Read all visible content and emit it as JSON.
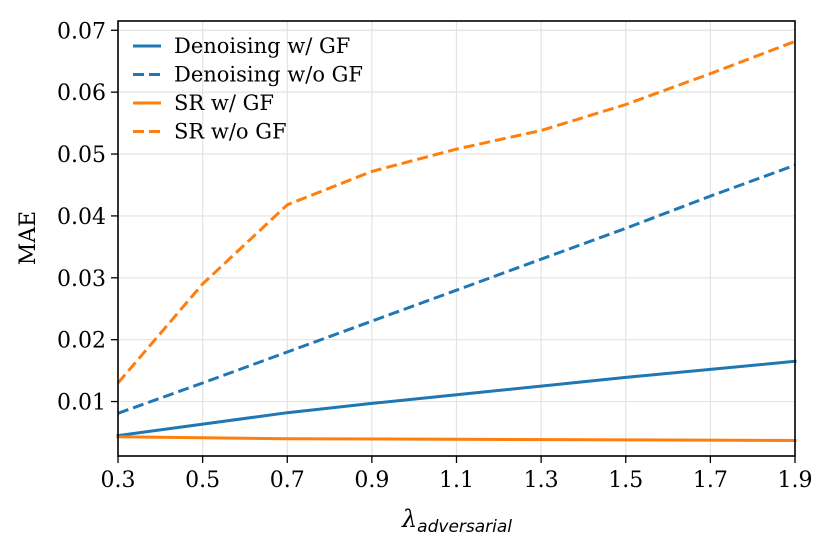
{
  "chart_data": {
    "type": "line",
    "title": "",
    "xlabel_symbol": "λ",
    "xlabel_subscript": "adversarial",
    "ylabel": "MAE",
    "xlim": [
      0.3,
      1.9
    ],
    "ylim": [
      0.0012,
      0.0715
    ],
    "xticks": [
      0.3,
      0.5,
      0.7,
      0.9,
      1.1,
      1.3,
      1.5,
      1.7,
      1.9
    ],
    "xtick_labels": [
      "0.3",
      "0.5",
      "0.7",
      "0.9",
      "1.1",
      "1.3",
      "1.5",
      "1.7",
      "1.9"
    ],
    "yticks": [
      0.01,
      0.02,
      0.03,
      0.04,
      0.05,
      0.06,
      0.07
    ],
    "ytick_labels": [
      "0.01",
      "0.02",
      "0.03",
      "0.04",
      "0.05",
      "0.06",
      "0.07"
    ],
    "grid": true,
    "legend_position": "top-left",
    "series": [
      {
        "name": "Denoising w/ GF",
        "color": "#1f77b4",
        "style": "solid",
        "x": [
          0.3,
          0.7,
          0.9,
          1.1,
          1.3,
          1.5,
          1.7,
          1.9
        ],
        "values": [
          0.0045,
          0.0082,
          0.0097,
          0.0111,
          0.0125,
          0.0139,
          0.0152,
          0.0165
        ]
      },
      {
        "name": "Denoising w/o GF",
        "color": "#1f77b4",
        "style": "dashed",
        "x": [
          0.3,
          0.5,
          0.7,
          0.9,
          1.1,
          1.3,
          1.5,
          1.7,
          1.9
        ],
        "values": [
          0.0081,
          0.013,
          0.018,
          0.023,
          0.028,
          0.033,
          0.038,
          0.0432,
          0.0482
        ]
      },
      {
        "name": "SR w/ GF",
        "color": "#ff7f0e",
        "style": "solid",
        "x": [
          0.3,
          0.7,
          1.1,
          1.5,
          1.9
        ],
        "values": [
          0.0043,
          0.004,
          0.0039,
          0.0038,
          0.0037
        ]
      },
      {
        "name": "SR w/o GF",
        "color": "#ff7f0e",
        "style": "dashed",
        "x": [
          0.3,
          0.5,
          0.7,
          0.9,
          1.1,
          1.3,
          1.5,
          1.7,
          1.9
        ],
        "values": [
          0.013,
          0.029,
          0.0418,
          0.0472,
          0.0508,
          0.0538,
          0.058,
          0.063,
          0.0682
        ]
      }
    ]
  }
}
